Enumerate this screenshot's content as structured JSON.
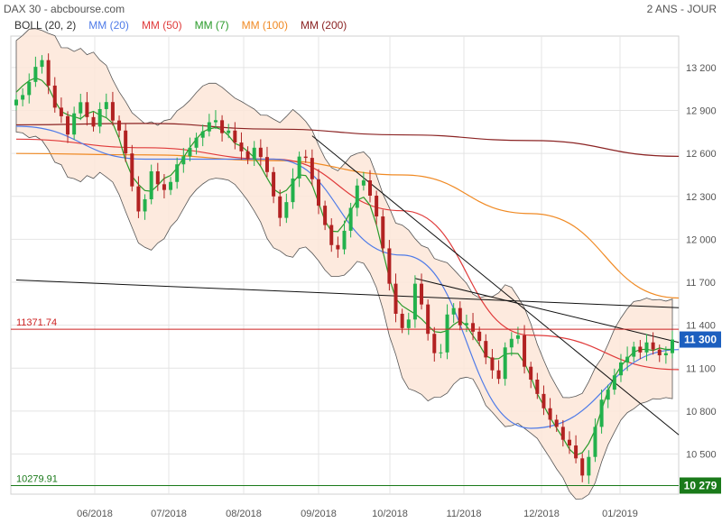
{
  "header": {
    "left": "DAX 30 - abcbourse.com",
    "right": "2 ANS - JOUR"
  },
  "chart_data": {
    "type": "candlestick",
    "title": "DAX 30",
    "legend": [
      {
        "label": "BOLL (20, 2)",
        "color": "#333333"
      },
      {
        "label": "MM (20)",
        "color": "#4f7be8"
      },
      {
        "label": "MM (50)",
        "color": "#e03a3a"
      },
      {
        "label": "MM (7)",
        "color": "#2a9a2a"
      },
      {
        "label": "MM (100)",
        "color": "#f08a24"
      },
      {
        "label": "MM (200)",
        "color": "#8b2323"
      }
    ],
    "x_ticks": [
      "06/2018",
      "07/2018",
      "08/2018",
      "09/2018",
      "10/2018",
      "11/2018",
      "12/2018",
      "01/2019"
    ],
    "y_ticks": [
      10500,
      10800,
      11100,
      11400,
      11700,
      12000,
      12300,
      12600,
      12900,
      13200
    ],
    "y_tick_labels": [
      "10 500",
      "10 800",
      "11 100",
      "11 400",
      "11 700",
      "12 000",
      "12 300",
      "12 600",
      "12 900",
      "13 200"
    ],
    "ylim": [
      10220,
      13420
    ],
    "reference_lines": [
      {
        "label": "11371.74",
        "value": 11371.74,
        "color": "#cc2222"
      },
      {
        "label": "10279.91",
        "value": 10279.91,
        "color": "#1a7a1a"
      }
    ],
    "price_tags": [
      {
        "label": "11 300",
        "value": 11300,
        "color": "#1c5fbf"
      },
      {
        "label": "10 279",
        "value": 10279.91,
        "color": "#1a7a1a"
      }
    ],
    "close_series": [
      12976,
      13008,
      13100,
      13205,
      13252,
      13074,
      12920,
      12860,
      12732,
      12880,
      12958,
      12854,
      12788,
      12910,
      12959,
      12830,
      12760,
      12600,
      12370,
      12195,
      12280,
      12475,
      12385,
      12345,
      12401,
      12524,
      12580,
      12640,
      12710,
      12754,
      12818,
      12832,
      12742,
      12760,
      12676,
      12615,
      12560,
      12640,
      12575,
      12470,
      12300,
      12150,
      12260,
      12425,
      12578,
      12569,
      12420,
      12235,
      12100,
      11960,
      11930,
      12060,
      12220,
      12376,
      12412,
      12305,
      12160,
      11937,
      11690,
      11480,
      11380,
      11440,
      11690,
      11545,
      11340,
      11205,
      11210,
      11475,
      11520,
      11400,
      11415,
      11355,
      11290,
      11175,
      11085,
      11025,
      11245,
      11305,
      11330,
      11110,
      11020,
      10920,
      10820,
      10740,
      10690,
      10600,
      10560,
      10470,
      10350,
      10480,
      10690,
      10880,
      10950,
      11050,
      11140,
      11180,
      11250,
      11210,
      11280,
      11230,
      11190,
      11205,
      11300
    ],
    "moving_averages": [
      {
        "name": "MM (200)",
        "color": "#8b2323",
        "values": [
          [
            0,
            12800
          ],
          [
            20,
            12810
          ],
          [
            40,
            12770
          ],
          [
            60,
            12730
          ],
          [
            80,
            12690
          ],
          [
            103,
            12580
          ]
        ]
      },
      {
        "name": "MM (100)",
        "color": "#f08a24",
        "values": [
          [
            0,
            12600
          ],
          [
            20,
            12590
          ],
          [
            40,
            12550
          ],
          [
            60,
            12450
          ],
          [
            80,
            12180
          ],
          [
            103,
            11590
          ]
        ]
      },
      {
        "name": "MM (50)",
        "color": "#e03a3a",
        "values": [
          [
            0,
            12700
          ],
          [
            20,
            12640
          ],
          [
            40,
            12560
          ],
          [
            60,
            12200
          ],
          [
            80,
            11330
          ],
          [
            103,
            11090
          ]
        ]
      },
      {
        "name": "MM (20)",
        "color": "#4f7be8",
        "values": [
          [
            0,
            12790
          ],
          [
            20,
            12560
          ],
          [
            40,
            12560
          ],
          [
            60,
            11890
          ],
          [
            80,
            10680
          ],
          [
            103,
            11230
          ]
        ]
      }
    ],
    "trend_lines": [
      {
        "from": [
          0,
          11716
        ],
        "to": [
          103,
          11522
        ]
      },
      {
        "from": [
          46,
          12723
        ],
        "to": [
          103,
          10634
        ]
      },
      {
        "from": [
          62,
          11727
        ],
        "to": [
          103,
          11280
        ]
      }
    ]
  }
}
